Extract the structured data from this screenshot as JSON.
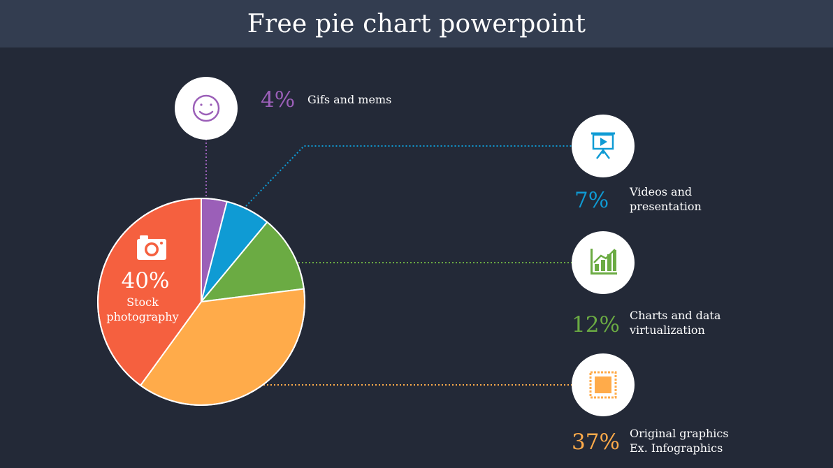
{
  "header": {
    "title": "Free pie chart powerpoint"
  },
  "colors": {
    "background": "#232937",
    "header": "#333d50",
    "purple": "#9b5fb8",
    "blue": "#0f9bd4",
    "green": "#6bab43",
    "orange": "#ffab4a",
    "red": "#f5603f"
  },
  "chart_data": {
    "type": "pie",
    "title": "Free pie chart powerpoint",
    "slices": [
      {
        "label": "Gifs and mems",
        "value": 4,
        "value_label": "4%",
        "color": "#9b5fb8",
        "icon": "smiley-icon",
        "lines": [
          "Gifs and mems"
        ]
      },
      {
        "label": "Videos and presentation",
        "value": 7,
        "value_label": "7%",
        "color": "#0f9bd4",
        "icon": "presentation-icon",
        "lines": [
          "Videos and",
          "presentation"
        ]
      },
      {
        "label": "Charts and data virtualization",
        "value": 12,
        "value_label": "12%",
        "color": "#6bab43",
        "icon": "bar-chart-icon",
        "lines": [
          "Charts and data",
          "virtualization"
        ]
      },
      {
        "label": "Original graphics Ex. Infographics",
        "value": 37,
        "value_label": "37%",
        "color": "#ffab4a",
        "icon": "stamp-icon",
        "lines": [
          "Original graphics",
          "Ex. Infographics"
        ]
      },
      {
        "label": "Stock photography",
        "value": 40,
        "value_label": "40%",
        "color": "#f5603f",
        "icon": "camera-icon",
        "lines": [
          "Stock",
          "photography"
        ]
      }
    ]
  }
}
